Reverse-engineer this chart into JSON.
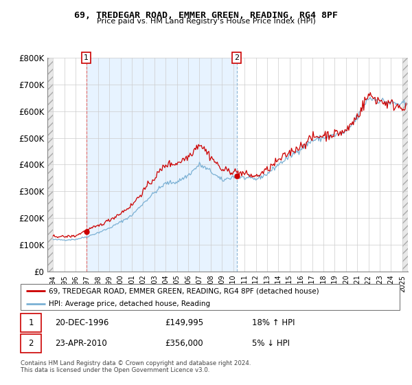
{
  "title1": "69, TREDEGAR ROAD, EMMER GREEN, READING, RG4 8PF",
  "title2": "Price paid vs. HM Land Registry's House Price Index (HPI)",
  "legend_label1": "69, TREDEGAR ROAD, EMMER GREEN, READING, RG4 8PF (detached house)",
  "legend_label2": "HPI: Average price, detached house, Reading",
  "annotation1_date": "20-DEC-1996",
  "annotation1_price": "£149,995",
  "annotation1_hpi": "18% ↑ HPI",
  "annotation2_date": "23-APR-2010",
  "annotation2_price": "£356,000",
  "annotation2_hpi": "5% ↓ HPI",
  "footer": "Contains HM Land Registry data © Crown copyright and database right 2024.\nThis data is licensed under the Open Government Licence v3.0.",
  "line_color_price": "#cc0000",
  "line_color_hpi": "#7ab0d4",
  "marker_color": "#cc0000",
  "sale1_vline_color": "#dd6666",
  "sale2_vline_color": "#8ab4d4",
  "annotation_box_color": "#cc0000",
  "shade_color": "#ddeeff",
  "ylim": [
    0,
    800000
  ],
  "yticks": [
    0,
    100000,
    200000,
    300000,
    400000,
    500000,
    600000,
    700000,
    800000
  ],
  "ytick_labels": [
    "£0",
    "£100K",
    "£200K",
    "£300K",
    "£400K",
    "£500K",
    "£600K",
    "£700K",
    "£800K"
  ],
  "sale1_x": 1996.96,
  "sale1_y": 149995,
  "sale2_x": 2010.31,
  "sale2_y": 356000,
  "xlim_left": 1993.5,
  "xlim_right": 2025.5
}
